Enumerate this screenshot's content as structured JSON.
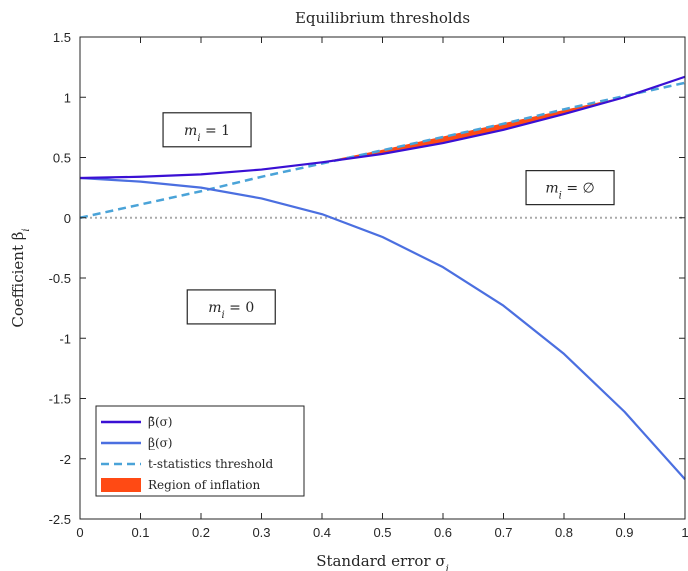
{
  "chart_data": {
    "type": "line",
    "title": "Equilibrium thresholds",
    "xlabel": "Standard error σ",
    "xlabel_sub": "i",
    "ylabel": "Coefficient β",
    "ylabel_sub": "i",
    "xlim": [
      0,
      1
    ],
    "ylim": [
      -2.5,
      1.5
    ],
    "xticks": [
      0,
      0.1,
      0.2,
      0.3,
      0.4,
      0.5,
      0.6,
      0.7,
      0.8,
      0.9,
      1
    ],
    "yticks": [
      -2.5,
      -2,
      -1.5,
      -1,
      -0.5,
      0,
      0.5,
      1,
      1.5
    ],
    "xtick_labels": [
      "0",
      "0.1",
      "0.2",
      "0.3",
      "0.4",
      "0.5",
      "0.6",
      "0.7",
      "0.8",
      "0.9",
      "1"
    ],
    "ytick_labels": [
      "-2.5",
      "-2",
      "-1.5",
      "-1",
      "-0.5",
      "0",
      "0.5",
      "1",
      "1.5"
    ],
    "grid": false,
    "legend_position": "bottom-left",
    "x": [
      0,
      0.1,
      0.2,
      0.3,
      0.4,
      0.5,
      0.6,
      0.7,
      0.8,
      0.9,
      1
    ],
    "series": [
      {
        "name": "β̄(σ)",
        "color": "#3a10d4",
        "style": "solid",
        "values": [
          0.33,
          0.34,
          0.36,
          0.4,
          0.46,
          0.53,
          0.62,
          0.73,
          0.86,
          1.0,
          1.17
        ]
      },
      {
        "name": "β̲(σ)",
        "color": "#4b6fe0",
        "style": "solid",
        "values": [
          0.33,
          0.3,
          0.25,
          0.16,
          0.03,
          -0.16,
          -0.41,
          -0.73,
          -1.13,
          -1.61,
          -2.17
        ]
      },
      {
        "name": "t-statistics threshold",
        "color": "#4aa3d8",
        "style": "dashed",
        "values": [
          0.0,
          0.11,
          0.22,
          0.34,
          0.45,
          0.56,
          0.67,
          0.78,
          0.9,
          1.01,
          1.12
        ]
      }
    ],
    "region": {
      "name": "Region of inflation",
      "color": "#ff4a14",
      "x": [
        0.4,
        0.5,
        0.6,
        0.7,
        0.8,
        0.9
      ],
      "lower": [
        0.46,
        0.53,
        0.62,
        0.73,
        0.86,
        1.0
      ],
      "upper": [
        0.46,
        0.56,
        0.67,
        0.78,
        0.89,
        1.0
      ]
    },
    "zero_line": {
      "y": 0,
      "color": "#aaaaaa",
      "style": "dotted"
    },
    "annotations": [
      {
        "text": "m",
        "sub": "i",
        "rest": " = 1",
        "x": 0.21,
        "y": 0.73
      },
      {
        "text": "m",
        "sub": "i",
        "rest": " = ∅",
        "x": 0.81,
        "y": 0.25
      },
      {
        "text": "m",
        "sub": "i",
        "rest": " = 0",
        "x": 0.25,
        "y": -0.74
      }
    ]
  }
}
